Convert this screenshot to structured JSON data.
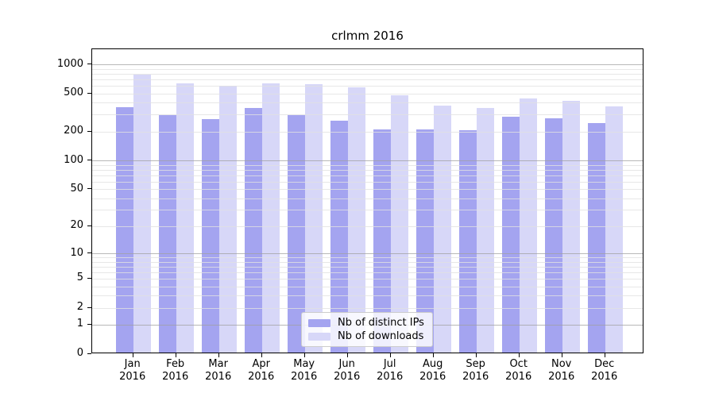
{
  "title": "crlmm 2016",
  "chart_data": {
    "type": "bar",
    "title": "crlmm 2016",
    "xlabel": "",
    "ylabel": "",
    "categories": [
      "Jan",
      "Feb",
      "Mar",
      "Apr",
      "May",
      "Jun",
      "Jul",
      "Aug",
      "Sep",
      "Oct",
      "Nov",
      "Dec"
    ],
    "xtick_year": "2016",
    "series": [
      {
        "name": "Nb of distinct IPs",
        "color": "#a4a4f0",
        "values": [
          350,
          290,
          262,
          345,
          288,
          252,
          205,
          204,
          201,
          276,
          269,
          238
        ]
      },
      {
        "name": "Nb of downloads",
        "color": "#d7d7f8",
        "values": [
          755,
          612,
          585,
          622,
          603,
          560,
          465,
          362,
          340,
          432,
          406,
          358
        ]
      }
    ],
    "yscale": "log1p",
    "yticks": [
      0,
      1,
      2,
      5,
      10,
      20,
      50,
      100,
      200,
      500,
      1000
    ],
    "ylim": [
      0,
      1450
    ],
    "grid": {
      "enabled": true,
      "major_at": [
        1,
        10,
        100,
        1000
      ],
      "minor_decades": [
        1,
        10,
        100
      ]
    },
    "legend_position": "lower center"
  }
}
